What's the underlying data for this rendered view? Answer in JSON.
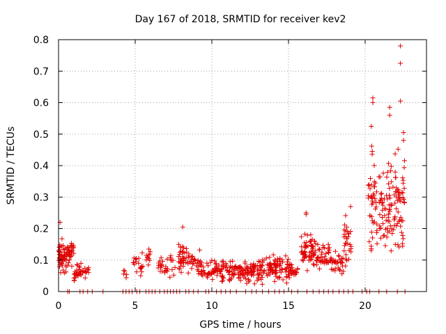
{
  "chart_data": {
    "type": "scatter",
    "title": "Day 167 of 2018, SRMTID for receiver kev2",
    "xlabel": "GPS time / hours",
    "ylabel": "SRMTID / TECUs",
    "xlim": [
      0,
      24
    ],
    "ylim": [
      0,
      0.8
    ],
    "x_ticks": [
      0,
      5,
      10,
      15,
      20
    ],
    "y_ticks": [
      0,
      0.1,
      0.2,
      0.3,
      0.4,
      0.5,
      0.6,
      0.7,
      0.8
    ],
    "x_tick_labels": [
      "0",
      "5",
      "10",
      "15",
      "20"
    ],
    "y_tick_labels": [
      "0",
      "0.1",
      "0.2",
      "0.3",
      "0.4",
      "0.5",
      "0.6",
      "0.7",
      "0.8"
    ],
    "grid": true,
    "marker": "+",
    "color": "#e00000",
    "series": [
      {
        "name": "SRMTID",
        "clusters": [
          {
            "x": [
              0.0,
              0.5
            ],
            "mean": 0.11,
            "spread": 0.045,
            "n": 50
          },
          {
            "x": [
              0.5,
              1.0
            ],
            "mean": 0.125,
            "spread": 0.03,
            "n": 35
          },
          {
            "x": [
              1.0,
              1.5
            ],
            "mean": 0.065,
            "spread": 0.025,
            "n": 30
          },
          {
            "x": [
              1.5,
              2.0
            ],
            "mean": 0.06,
            "spread": 0.015,
            "n": 12
          },
          {
            "x": [
              4.2,
              4.5
            ],
            "mean": 0.06,
            "spread": 0.02,
            "n": 5
          },
          {
            "x": [
              4.8,
              5.5
            ],
            "mean": 0.09,
            "spread": 0.03,
            "n": 18
          },
          {
            "x": [
              5.5,
              6.0
            ],
            "mean": 0.11,
            "spread": 0.03,
            "n": 12
          },
          {
            "x": [
              6.4,
              7.0
            ],
            "mean": 0.08,
            "spread": 0.03,
            "n": 18
          },
          {
            "x": [
              7.0,
              7.6
            ],
            "mean": 0.08,
            "spread": 0.03,
            "n": 14
          },
          {
            "x": [
              7.8,
              8.5
            ],
            "mean": 0.11,
            "spread": 0.045,
            "n": 40
          },
          {
            "x": [
              8.5,
              9.3
            ],
            "mean": 0.09,
            "spread": 0.03,
            "n": 28
          },
          {
            "x": [
              9.3,
              10.5
            ],
            "mean": 0.065,
            "spread": 0.03,
            "n": 45
          },
          {
            "x": [
              10.5,
              12.0
            ],
            "mean": 0.065,
            "spread": 0.03,
            "n": 70
          },
          {
            "x": [
              12.0,
              13.5
            ],
            "mean": 0.065,
            "spread": 0.03,
            "n": 80
          },
          {
            "x": [
              13.5,
              15.0
            ],
            "mean": 0.075,
            "spread": 0.035,
            "n": 80
          },
          {
            "x": [
              15.0,
              15.6
            ],
            "mean": 0.065,
            "spread": 0.025,
            "n": 25
          },
          {
            "x": [
              15.8,
              16.8
            ],
            "mean": 0.13,
            "spread": 0.045,
            "n": 60
          },
          {
            "x": [
              16.8,
              17.8
            ],
            "mean": 0.11,
            "spread": 0.035,
            "n": 45
          },
          {
            "x": [
              17.8,
              18.6
            ],
            "mean": 0.09,
            "spread": 0.03,
            "n": 30
          },
          {
            "x": [
              18.6,
              19.1
            ],
            "mean": 0.15,
            "spread": 0.07,
            "n": 30
          },
          {
            "x": [
              20.2,
              20.8
            ],
            "mean": 0.3,
            "spread": 0.16,
            "n": 45
          },
          {
            "x": [
              20.9,
              21.4
            ],
            "mean": 0.25,
            "spread": 0.11,
            "n": 30
          },
          {
            "x": [
              21.4,
              22.0
            ],
            "mean": 0.3,
            "spread": 0.13,
            "n": 45
          },
          {
            "x": [
              22.0,
              22.6
            ],
            "mean": 0.28,
            "spread": 0.14,
            "n": 45
          }
        ],
        "outliers": [
          {
            "x": 22.3,
            "y": 0.78
          },
          {
            "x": 22.3,
            "y": 0.725
          },
          {
            "x": 22.3,
            "y": 0.605
          },
          {
            "x": 20.5,
            "y": 0.615
          },
          {
            "x": 20.5,
            "y": 0.6
          },
          {
            "x": 21.6,
            "y": 0.585
          },
          {
            "x": 21.6,
            "y": 0.56
          },
          {
            "x": 22.5,
            "y": 0.505
          },
          {
            "x": 22.5,
            "y": 0.48
          },
          {
            "x": 20.4,
            "y": 0.525
          },
          {
            "x": 16.15,
            "y": 0.25
          },
          {
            "x": 16.15,
            "y": 0.245
          },
          {
            "x": 19.05,
            "y": 0.27
          },
          {
            "x": 8.1,
            "y": 0.205
          },
          {
            "x": 0.1,
            "y": 0.22
          }
        ],
        "zero_hours": [
          0.6,
          0.7,
          1.4,
          1.6,
          1.9,
          2.2,
          2.9,
          4.2,
          4.4,
          4.6,
          4.8,
          5.1,
          5.3,
          5.7,
          5.9,
          6.1,
          6.3,
          6.6,
          6.9,
          7.1,
          7.3,
          7.5,
          7.7,
          7.9,
          8.3,
          8.5,
          8.8,
          9.1,
          9.6,
          9.8,
          10.3,
          10.6,
          10.9,
          11.2,
          11.6,
          12.2,
          12.6,
          12.9,
          13.3,
          13.7,
          14.1,
          14.4,
          14.7,
          15.2,
          15.6,
          16.2,
          16.6,
          17.0,
          17.3,
          17.6,
          17.9,
          18.3,
          18.6,
          18.9,
          19.2,
          19.8,
          20.1,
          20.3,
          20.9,
          21.4,
          22.1,
          22.6
        ]
      }
    ]
  }
}
